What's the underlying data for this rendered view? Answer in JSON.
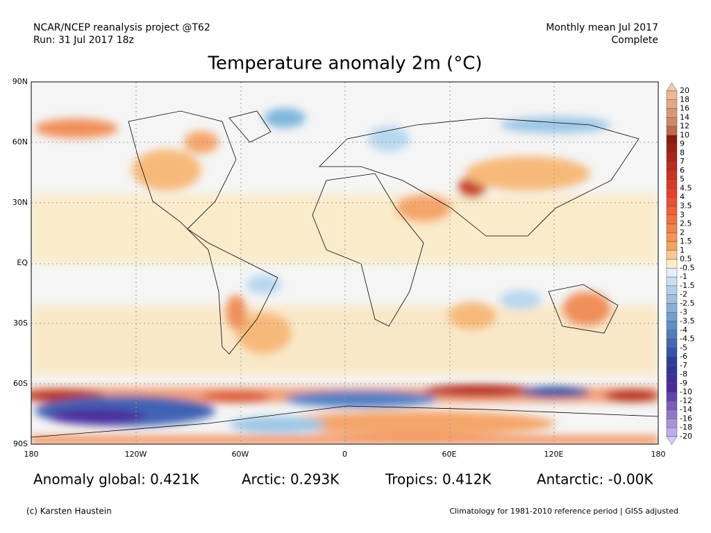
{
  "header": {
    "left": [
      "NCAR/NCEP reanalysis project @T62",
      "Run: 31 Jul 2017 18z"
    ],
    "right": [
      "Monthly mean Jul 2017",
      "Complete"
    ],
    "title": "Temperature anomaly 2m (°C)"
  },
  "map": {
    "lat_labels": [
      "90N",
      "60N",
      "30N",
      "EQ",
      "30S",
      "60S",
      "90S"
    ],
    "lon_labels": [
      "180",
      "120W",
      "60W",
      "0",
      "60E",
      "120E",
      "180"
    ]
  },
  "colorbar": {
    "labels": [
      "20",
      "18",
      "16",
      "14",
      "12",
      "10",
      "9",
      "8",
      "7",
      "6",
      "5",
      "4.5",
      "4",
      "3.5",
      "3",
      "2.5",
      "2",
      "1.5",
      "1",
      "0.5",
      "-0.5",
      "-1",
      "-1.5",
      "-2",
      "-2.5",
      "-3",
      "-3.5",
      "-4",
      "-4.5",
      "-5",
      "-6",
      "-7",
      "-8",
      "-9",
      "-10",
      "-12",
      "-14",
      "-16",
      "-18",
      "-20"
    ]
  },
  "stats": [
    "Anomaly global: 0.421K",
    "Arctic: 0.293K",
    "Tropics: 0.412K",
    "Antarctic: -0.00K"
  ],
  "footer": {
    "left": "(c) Karsten Haustein",
    "right": "Climatology for 1981-2010 reference period | GISS adjusted"
  }
}
